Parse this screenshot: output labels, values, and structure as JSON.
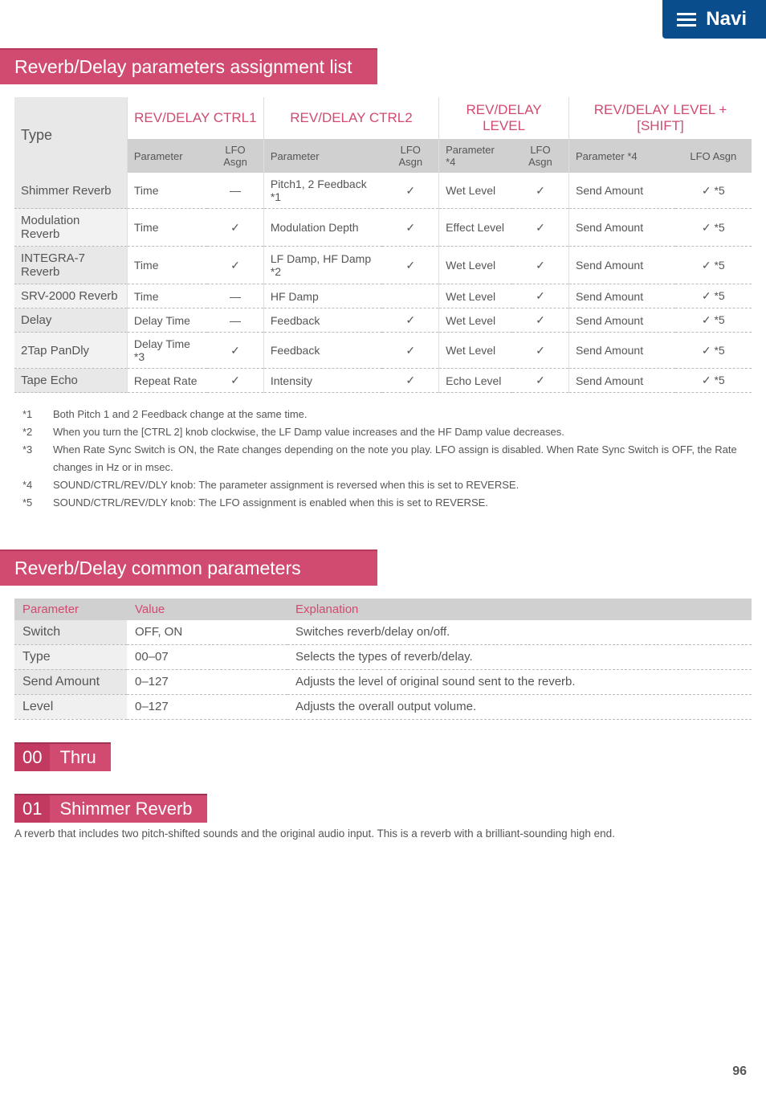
{
  "navi": {
    "label": "Navi"
  },
  "section1": {
    "title": "Reverb/Delay parameters assignment list"
  },
  "table1": {
    "type_label": "Type",
    "groups": [
      {
        "title": "REV/DELAY CTRL1",
        "sub1": "Parameter",
        "sub2": "LFO Asgn"
      },
      {
        "title": "REV/DELAY CTRL2",
        "sub1": "Parameter",
        "sub2": "LFO Asgn"
      },
      {
        "title": "REV/DELAY LEVEL",
        "sub1": "Parameter *4",
        "sub2": "LFO Asgn"
      },
      {
        "title": "REV/DELAY LEVEL + [SHIFT]",
        "sub1": "Parameter *4",
        "sub2": "LFO Asgn"
      }
    ],
    "rows": [
      {
        "type": "Shimmer Reverb",
        "c1p": "Time",
        "c1a": "—",
        "c2p": "Pitch1, 2 Feedback *1",
        "c2a": "✓",
        "c3p": "Wet Level",
        "c3a": "✓",
        "c4p": "Send Amount",
        "c4a": "✓ *5"
      },
      {
        "type": "Modulation Reverb",
        "c1p": "Time",
        "c1a": "✓",
        "c2p": "Modulation Depth",
        "c2a": "✓",
        "c3p": "Effect Level",
        "c3a": "✓",
        "c4p": "Send Amount",
        "c4a": "✓ *5"
      },
      {
        "type": "INTEGRA-7 Reverb",
        "c1p": "Time",
        "c1a": "✓",
        "c2p": "LF Damp, HF Damp *2",
        "c2a": "✓",
        "c3p": "Wet Level",
        "c3a": "✓",
        "c4p": "Send Amount",
        "c4a": "✓ *5"
      },
      {
        "type": "SRV-2000 Reverb",
        "c1p": "Time",
        "c1a": "—",
        "c2p": "HF Damp",
        "c2a": "",
        "c3p": "Wet Level",
        "c3a": "✓",
        "c4p": "Send Amount",
        "c4a": "✓ *5"
      },
      {
        "type": "Delay",
        "c1p": "Delay Time",
        "c1a": "—",
        "c2p": "Feedback",
        "c2a": "✓",
        "c3p": "Wet Level",
        "c3a": "✓",
        "c4p": "Send Amount",
        "c4a": "✓ *5"
      },
      {
        "type": "2Tap PanDly",
        "c1p": "Delay Time *3",
        "c1a": "✓",
        "c2p": "Feedback",
        "c2a": "✓",
        "c3p": "Wet Level",
        "c3a": "✓",
        "c4p": "Send Amount",
        "c4a": "✓ *5"
      },
      {
        "type": "Tape Echo",
        "c1p": "Repeat Rate",
        "c1a": "✓",
        "c2p": "Intensity",
        "c2a": "✓",
        "c3p": "Echo Level",
        "c3a": "✓",
        "c4p": "Send Amount",
        "c4a": "✓ *5"
      }
    ]
  },
  "notes": [
    {
      "n": "*1",
      "t": "Both Pitch 1 and 2 Feedback change at the same time."
    },
    {
      "n": "*2",
      "t": "When you turn the [CTRL 2] knob clockwise, the LF Damp value increases and the HF Damp value decreases."
    },
    {
      "n": "*3",
      "t": "When Rate Sync Switch is ON, the Rate changes depending on the note you play. LFO assign is disabled. When Rate Sync Switch is OFF, the Rate changes in Hz or in msec."
    },
    {
      "n": "*4",
      "t": "SOUND/CTRL/REV/DLY knob: The parameter assignment is reversed when this is set to REVERSE."
    },
    {
      "n": "*5",
      "t": "SOUND/CTRL/REV/DLY knob: The LFO assignment is enabled when this is set to REVERSE."
    }
  ],
  "section2": {
    "title": "Reverb/Delay common parameters"
  },
  "table2": {
    "headers": {
      "p": "Parameter",
      "v": "Value",
      "e": "Explanation"
    },
    "rows": [
      {
        "p": "Switch",
        "v": "OFF, ON",
        "e": "Switches reverb/delay on/off."
      },
      {
        "p": "Type",
        "v": "00–07",
        "e": "Selects the types of reverb/delay."
      },
      {
        "p": "Send Amount",
        "v": "0–127",
        "e": "Adjusts the level of original sound sent to the reverb."
      },
      {
        "p": "Level",
        "v": "0–127",
        "e": "Adjusts the overall output volume."
      }
    ]
  },
  "h00": {
    "num": "00",
    "txt": "Thru"
  },
  "h01": {
    "num": "01",
    "txt": "Shimmer Reverb"
  },
  "desc01": "A reverb that includes two pitch-shifted sounds and the original audio input. This is a reverb with a brilliant-sounding high end.",
  "pagenum": "96"
}
